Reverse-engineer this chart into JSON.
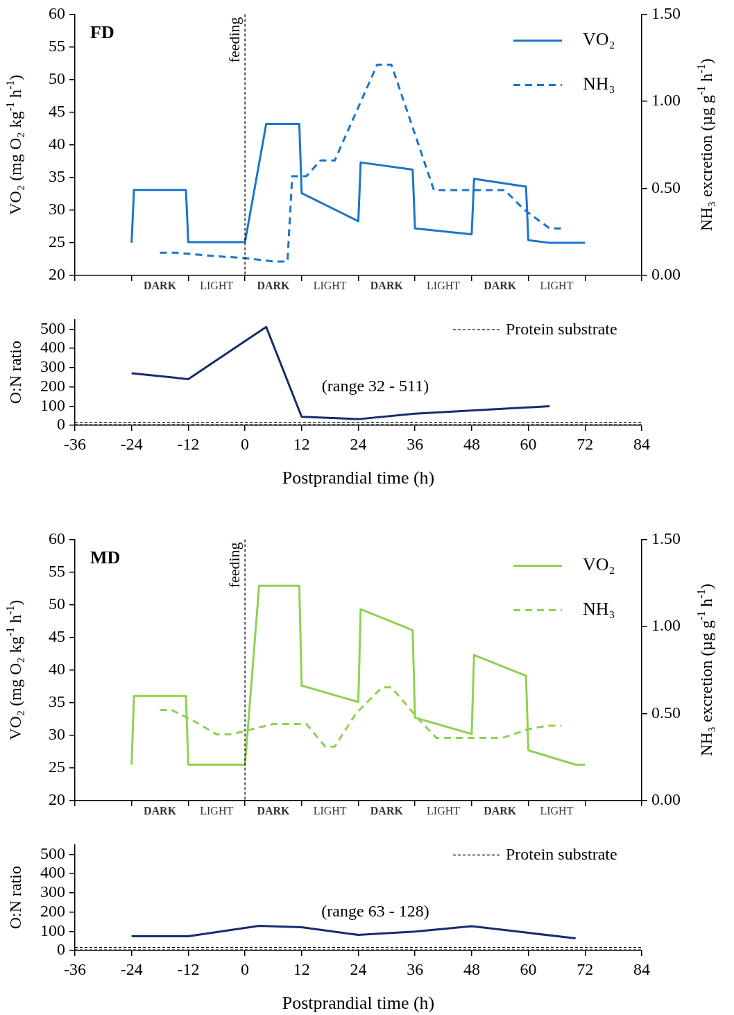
{
  "chart_data": [
    {
      "type": "line",
      "title": "FD",
      "ylabel": "VO₂ (mg O₂ kg$^{-1}$ h$^{-1}$)",
      "y2label": "NH₃ excretion (µg g$^{-1}$ h$^{-1}$)",
      "xlim": [
        -36,
        84
      ],
      "xticks": [
        {
          "value": -36,
          "label": null
        },
        {
          "value": -24,
          "label": null
        },
        {
          "value": -12,
          "label": null
        },
        {
          "value": 0,
          "label": null
        },
        {
          "value": 12,
          "label": null
        },
        {
          "value": 24,
          "label": null
        },
        {
          "value": 36,
          "label": null
        },
        {
          "value": 48,
          "label": null
        },
        {
          "value": 60,
          "label": null
        },
        {
          "value": 72,
          "label": null
        },
        {
          "value": 84,
          "label": null
        }
      ],
      "tick_labels": "y",
      "annotations": [
        "DARK",
        "LIGHT",
        "DARK",
        "LIGHT",
        "DARK",
        "LIGHT",
        "DARK",
        "LIGHT"
      ],
      "ylim": [
        20,
        60
      ],
      "yticks": [
        20,
        25,
        30,
        35,
        40,
        45,
        50,
        55,
        60
      ],
      "y2lim": [
        0,
        1.5
      ],
      "y2ticks": [
        {
          "value": 0,
          "label": "0.00"
        },
        {
          "value": 0.5,
          "label": "0.50"
        },
        {
          "value": 1,
          "label": "1.00"
        },
        {
          "value": 1.5,
          "label": "1.50"
        }
      ],
      "legend": "top right",
      "series": [
        {
          "name": "VO₂",
          "color": "#1b75c9",
          "line_style": "solid",
          "x": [
            -24,
            -23.5,
            -12.5,
            -12,
            0,
            4.5,
            11.5,
            12,
            24,
            24.5,
            35.5,
            36,
            48,
            48.5,
            59.5,
            60,
            64.5,
            72
          ],
          "values": [
            25,
            33.1,
            33.1,
            25.1,
            25.1,
            43.2,
            43.2,
            32.6,
            28.3,
            37.3,
            36.2,
            27.2,
            26.3,
            34.8,
            33.6,
            25.4,
            25,
            25
          ]
        },
        {
          "name": "NH₃",
          "color": "#1b75c9",
          "line_style": "dashed",
          "axis": "y2",
          "x": [
            -18,
            -14.5,
            -6,
            0,
            6,
            9,
            10,
            13,
            16,
            19,
            28,
            31,
            40,
            55,
            59,
            64.5,
            67.5
          ],
          "values": [
            0.13,
            0.13,
            0.11,
            0.1,
            0.08,
            0.08,
            0.57,
            0.57,
            0.66,
            0.66,
            1.21,
            1.21,
            0.49,
            0.49,
            0.38,
            0.27,
            0.27
          ]
        }
      ],
      "ref_lines": [
        {
          "axis": "x",
          "value": 0,
          "label": "feeding",
          "color": "#000000",
          "line_style": "dashed"
        }
      ]
    },
    {
      "type": "line",
      "xlabel": "Postprandial time (h)",
      "ylabel": "O:N ratio",
      "xlim": [
        -36,
        84
      ],
      "xticks": [
        -36,
        -24,
        -12,
        0,
        12,
        24,
        36,
        48,
        60,
        72,
        84
      ],
      "ylim": [
        0,
        550
      ],
      "yticks": [
        0,
        100,
        200,
        300,
        400,
        500
      ],
      "series": [
        {
          "color": "#1a2b6d",
          "line_style": "solid",
          "x": [
            -24,
            -12,
            4.5,
            12,
            24,
            36,
            64.5
          ],
          "values": [
            270,
            240,
            511,
            44,
            32,
            60,
            99
          ]
        }
      ],
      "ref_lines": [
        {
          "axis": "y",
          "value": 16,
          "label": "Protein substrate",
          "color": "#000000",
          "line_style": "dashed"
        },
        {
          "axis": "y",
          "value": 3,
          "color": "#000000",
          "line_style": "dashed"
        }
      ],
      "annotations": [
        "(range 32 - 511)"
      ]
    },
    {
      "type": "line",
      "title": "MD",
      "ylabel": "VO₂ (mg O₂ kg$^{-1}$ h$^{-1}$)",
      "y2label": "NH₃ excretion (µg g$^{-1}$ h$^{-1}$)",
      "xlim": [
        -36,
        84
      ],
      "xticks": [
        {
          "value": -36,
          "label": null
        },
        {
          "value": -24,
          "label": null
        },
        {
          "value": -12,
          "label": null
        },
        {
          "value": 0,
          "label": null
        },
        {
          "value": 12,
          "label": null
        },
        {
          "value": 24,
          "label": null
        },
        {
          "value": 36,
          "label": null
        },
        {
          "value": 48,
          "label": null
        },
        {
          "value": 60,
          "label": null
        },
        {
          "value": 72,
          "label": null
        },
        {
          "value": 84,
          "label": null
        }
      ],
      "tick_labels": "y",
      "annotations": [
        "DARK",
        "LIGHT",
        "DARK",
        "LIGHT",
        "DARK",
        "LIGHT",
        "DARK",
        "LIGHT"
      ],
      "ylim": [
        20,
        60
      ],
      "yticks": [
        20,
        25,
        30,
        35,
        40,
        45,
        50,
        55,
        60
      ],
      "y2lim": [
        0,
        1.5
      ],
      "y2ticks": [
        {
          "value": 0,
          "label": "0.00"
        },
        {
          "value": 0.5,
          "label": "0.50"
        },
        {
          "value": 1,
          "label": "1.00"
        },
        {
          "value": 1.5,
          "label": "1.50"
        }
      ],
      "legend": "top right",
      "series": [
        {
          "name": "VO₂",
          "color": "#8fd14f",
          "line_style": "solid",
          "x": [
            -24,
            -23.5,
            -12.5,
            -12,
            0,
            3,
            11.5,
            12,
            24,
            24.5,
            35.5,
            36,
            48,
            48.5,
            59.5,
            60,
            70,
            72
          ],
          "values": [
            25.5,
            36,
            36,
            25.5,
            25.5,
            52.9,
            52.9,
            37.6,
            35.1,
            49.3,
            46.1,
            32.7,
            30.2,
            42.3,
            39.1,
            27.7,
            25.5,
            25.5
          ]
        },
        {
          "name": "NH₃",
          "color": "#8fd14f",
          "line_style": "dashed",
          "axis": "y2",
          "x": [
            -18,
            -15.5,
            -11,
            -6,
            -3,
            0,
            6,
            13,
            17,
            19,
            23.5,
            29,
            31,
            37,
            40.5,
            54.5,
            60,
            64,
            67
          ],
          "values": [
            0.52,
            0.52,
            0.46,
            0.38,
            0.38,
            0.4,
            0.44,
            0.44,
            0.31,
            0.31,
            0.5,
            0.65,
            0.65,
            0.46,
            0.36,
            0.36,
            0.41,
            0.43,
            0.43
          ]
        }
      ],
      "ref_lines": [
        {
          "axis": "x",
          "value": 0,
          "label": "feeding",
          "color": "#000000",
          "line_style": "dashed"
        }
      ]
    },
    {
      "type": "line",
      "xlabel": "Postprandial time (h)",
      "ylabel": "O:N ratio",
      "xlim": [
        -36,
        84
      ],
      "xticks": [
        -36,
        -24,
        -12,
        0,
        12,
        24,
        36,
        48,
        60,
        72,
        84
      ],
      "ylim": [
        0,
        550
      ],
      "yticks": [
        0,
        100,
        200,
        300,
        400,
        500
      ],
      "series": [
        {
          "color": "#1a2b6d",
          "line_style": "solid",
          "x": [
            -24,
            -12,
            3,
            12,
            24,
            36,
            48,
            70
          ],
          "values": [
            74,
            74,
            128,
            121,
            81,
            98,
            126,
            63
          ]
        }
      ],
      "ref_lines": [
        {
          "axis": "y",
          "value": 16,
          "label": "Protein substrate",
          "color": "#000000",
          "line_style": "dashed"
        },
        {
          "axis": "y",
          "value": 3,
          "color": "#000000",
          "line_style": "dashed"
        }
      ],
      "annotations": [
        "(range 63 - 128)"
      ]
    }
  ]
}
